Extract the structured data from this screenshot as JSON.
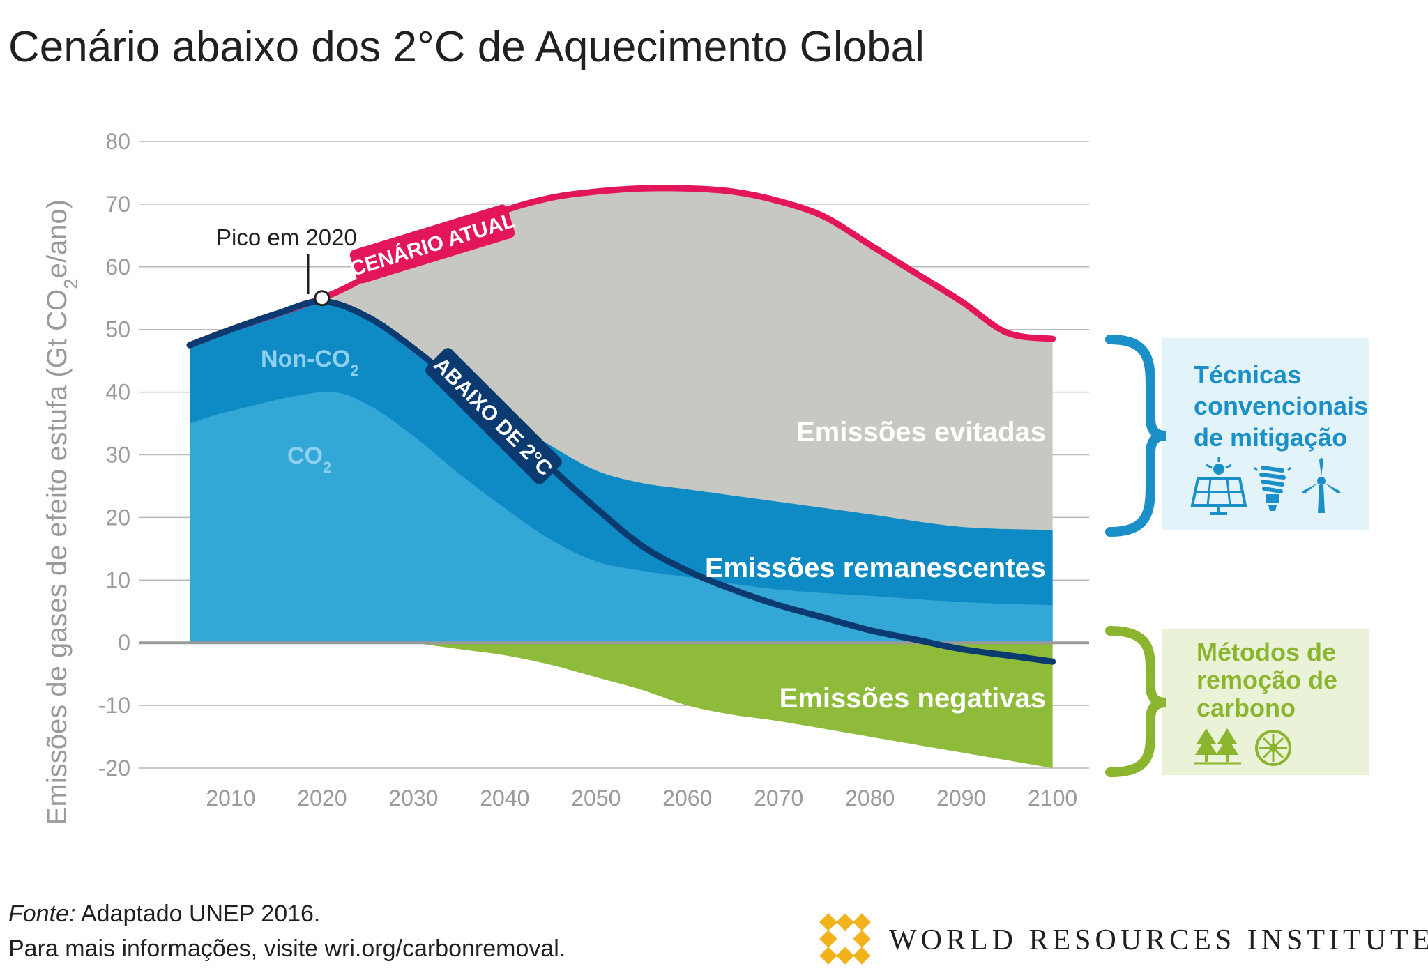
{
  "title": "Cenário abaixo dos 2°C de Aquecimento Global",
  "footer": {
    "source_label": "Fonte:",
    "source_text": " Adaptado UNEP 2016.",
    "more_info": "Para mais informações, visite wri.org/carbonremoval.",
    "org_name": "WORLD RESOURCES INSTITUTE"
  },
  "side_panels": {
    "mitigation": {
      "lines": [
        "Técnicas",
        "convencionais",
        "de mitigação"
      ],
      "icons": [
        "solar-panel-icon",
        "light-bulb-icon",
        "wind-turbine-icon"
      ],
      "color": "#1b8fc7"
    },
    "removal": {
      "lines": [
        "Métodos de",
        "remoção de",
        "carbono"
      ],
      "icons": [
        "trees-icon",
        "bioenergy-icon"
      ],
      "color": "#8bb52f"
    }
  },
  "colors": {
    "current_scenario": "#e4165a",
    "below_2c": "#0b3a70",
    "avoided": "#c8c8c3",
    "non_co2": "#0e8bc4",
    "co2": "#33a7d6",
    "negative": "#8fbb3a"
  },
  "chart_data": {
    "type": "area",
    "title": "Cenário abaixo dos 2°C de Aquecimento Global",
    "ylabel": "Emissões de gases de efeito estufa (Gt CO₂e/ano)",
    "xlabel": "",
    "ylim": [
      -20,
      80
    ],
    "xlim": [
      2000,
      2104
    ],
    "yticks": [
      80,
      70,
      60,
      50,
      40,
      30,
      20,
      10,
      0,
      -10,
      -20
    ],
    "ytick_labels": [
      "80",
      "70",
      "60",
      "50",
      "40",
      "30",
      "20",
      "10",
      "0",
      "-10",
      "-20"
    ],
    "xticks": [
      2010,
      2020,
      2030,
      2040,
      2050,
      2060,
      2070,
      2080,
      2090,
      2100
    ],
    "xtick_labels": [
      "2010",
      "2020",
      "2030",
      "2040",
      "2050",
      "2060",
      "2070",
      "2080",
      "2090",
      "2100"
    ],
    "grid": true,
    "series": [
      {
        "name": "CENÁRIO ATUAL",
        "type": "line",
        "x": [
          2005.5,
          2010,
          2020,
          2025,
          2030,
          2035,
          2040,
          2045,
          2050,
          2055,
          2060,
          2065,
          2070,
          2075,
          2080,
          2085,
          2090,
          2095,
          2100
        ],
        "y": [
          47.5,
          50,
          55,
          58.5,
          62.5,
          66,
          69,
          71,
          72,
          72.5,
          72.5,
          72,
          70.5,
          68,
          63.5,
          59,
          54.5,
          49.5,
          48.5
        ]
      },
      {
        "name": "ABAIXO DE 2°C",
        "type": "line",
        "x": [
          2005.5,
          2010,
          2015,
          2020,
          2025,
          2030,
          2035,
          2040,
          2045,
          2050,
          2055,
          2060,
          2065,
          2070,
          2075,
          2080,
          2085,
          2090,
          2095,
          2100
        ],
        "y": [
          47.5,
          50,
          52.5,
          54.5,
          52,
          47,
          41,
          35,
          28,
          21.5,
          15.5,
          11.5,
          8.5,
          6,
          4,
          2,
          0.5,
          -1,
          -2,
          -3
        ]
      },
      {
        "name": "Non-CO2",
        "type": "area",
        "x": [
          2005.5,
          2010,
          2020,
          2025,
          2030,
          2035,
          2040,
          2045,
          2050,
          2055,
          2060,
          2070,
          2080,
          2090,
          2100
        ],
        "y": [
          47.5,
          50,
          54.5,
          52,
          47,
          41,
          36,
          31.5,
          27.5,
          25.5,
          24.5,
          22.5,
          20.5,
          18.5,
          18
        ]
      },
      {
        "name": "CO2",
        "type": "area",
        "x": [
          2005.5,
          2010,
          2020,
          2025,
          2030,
          2035,
          2040,
          2045,
          2050,
          2055,
          2060,
          2070,
          2080,
          2090,
          2100
        ],
        "y": [
          35,
          37,
          40,
          38,
          33,
          27,
          21.5,
          16.5,
          13,
          11.5,
          10.5,
          8.5,
          7.5,
          6.5,
          6
        ]
      },
      {
        "name": "Emissões negativas",
        "type": "area",
        "x": [
          2030,
          2035,
          2040,
          2045,
          2050,
          2055,
          2060,
          2065,
          2070,
          2080,
          2090,
          2100
        ],
        "y": [
          0,
          -1,
          -2,
          -3.5,
          -5.5,
          -7.5,
          -10,
          -11.5,
          -12.5,
          -15,
          -17.5,
          -20
        ]
      }
    ],
    "area_labels": {
      "avoided": "Emissões evitadas",
      "remaining": "Emissões remanescentes",
      "negative": "Emissões negativas",
      "non_co2": "Non-CO2",
      "co2": "CO2"
    },
    "annotations": [
      {
        "text": "Pico em 2020",
        "x": 2020,
        "y": 55
      },
      {
        "text": "CENÁRIO ATUAL",
        "x": 2032,
        "y": 64
      },
      {
        "text": "ABAIXO DE 2°C",
        "x": 2040,
        "y": 36
      }
    ]
  }
}
